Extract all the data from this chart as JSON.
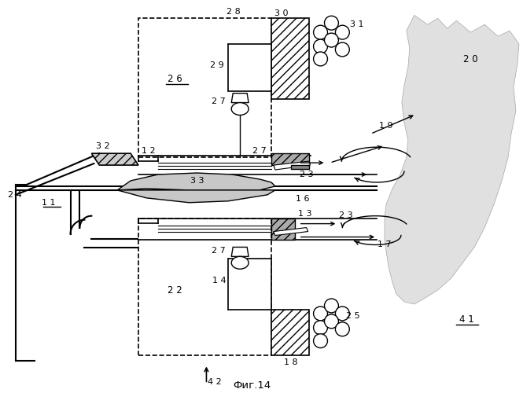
{
  "title": "Фиг.14",
  "bg_color": "#ffffff",
  "fig_width": 6.65,
  "fig_height": 5.0,
  "dpi": 100
}
